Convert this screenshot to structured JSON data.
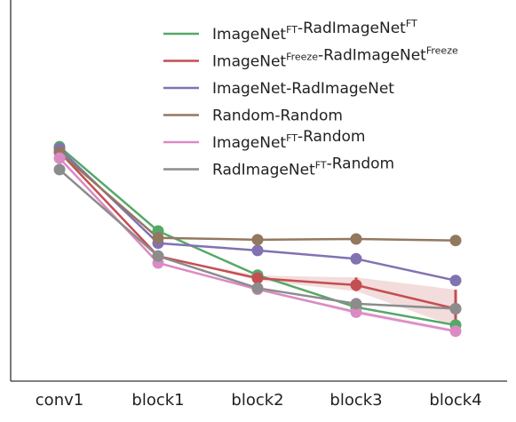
{
  "chart_data": {
    "type": "line",
    "title": "",
    "xlabel": "",
    "ylabel": "",
    "categories": [
      "conv1",
      "block1",
      "block2",
      "block3",
      "block4"
    ],
    "ylim": [
      0,
      1
    ],
    "y_ticks_shown": false,
    "grid": false,
    "legend_position": "top-right",
    "series": [
      {
        "name": "ImageNet^FT-RadImageNet^FT",
        "legend": {
          "parts": [
            {
              "t": "ImageNet",
              "sup": false
            },
            {
              "t": "FT",
              "sup": true
            },
            {
              "t": "-RadImageNet",
              "sup": false
            },
            {
              "t": "FT",
              "sup": true
            }
          ]
        },
        "color": "#55a868",
        "values": [
          0.615,
          0.394,
          0.278,
          0.194,
          0.147
        ],
        "error_band": null
      },
      {
        "name": "ImageNet^Freeze-RadImageNet^Freeze",
        "legend": {
          "parts": [
            {
              "t": "ImageNet",
              "sup": false
            },
            {
              "t": "Freeze",
              "sup": true
            },
            {
              "t": "-RadImageNet",
              "sup": false
            },
            {
              "t": "Freeze",
              "sup": true
            }
          ]
        },
        "color": "#c44e52",
        "values": [
          0.601,
          0.328,
          0.27,
          0.252,
          0.19
        ],
        "error_band": {
          "lower": [
            0.601,
            0.328,
            0.265,
            0.236,
            0.143
          ],
          "upper": [
            0.601,
            0.328,
            0.277,
            0.272,
            0.24
          ]
        }
      },
      {
        "name": "ImageNet-RadImageNet",
        "legend": {
          "parts": [
            {
              "t": "ImageNet-RadImageNet",
              "sup": false
            }
          ]
        },
        "color": "#8172b2",
        "values": [
          0.61,
          0.362,
          0.343,
          0.321,
          0.264
        ],
        "error_band": null
      },
      {
        "name": "Random-Random",
        "legend": {
          "parts": [
            {
              "t": "Random-Random",
              "sup": false
            }
          ]
        },
        "color": "#937860",
        "values": [
          0.6,
          0.376,
          0.371,
          0.373,
          0.369
        ],
        "error_band": null
      },
      {
        "name": "ImageNet^FT-Random",
        "legend": {
          "parts": [
            {
              "t": "ImageNet",
              "sup": false
            },
            {
              "t": "FT",
              "sup": true
            },
            {
              "t": "-Random",
              "sup": false
            }
          ]
        },
        "color": "#da8bc3",
        "values": [
          0.585,
          0.31,
          0.241,
          0.181,
          0.131
        ],
        "error_band": {
          "lower": [
            0.585,
            0.31,
            0.241,
            0.175,
            0.126
          ],
          "upper": [
            0.585,
            0.31,
            0.241,
            0.187,
            0.136
          ]
        }
      },
      {
        "name": "RadImageNet^FT-Random",
        "legend": {
          "parts": [
            {
              "t": "RadImageNet",
              "sup": false
            },
            {
              "t": "FT",
              "sup": true
            },
            {
              "t": "-Random",
              "sup": false
            }
          ]
        },
        "color": "#8c8c8c",
        "values": [
          0.555,
          0.328,
          0.244,
          0.203,
          0.19
        ],
        "error_band": null
      }
    ]
  }
}
